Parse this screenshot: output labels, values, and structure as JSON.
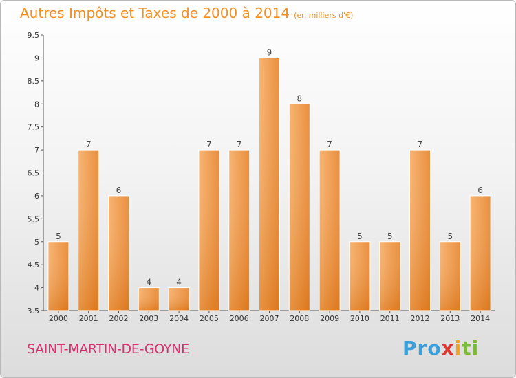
{
  "title": "Autres Impôts et Taxes de 2000 à 2014",
  "unit_label": "(en milliers d'€)",
  "commune": "SAINT-MARTIN-DE-GOYNE",
  "logo_text": "Proxiti",
  "colors": {
    "bar_light": "#f6a75a",
    "bar_dark": "#e67e22",
    "title": "#f29024",
    "commune": "#d8326e"
  },
  "chart_data": {
    "type": "bar",
    "categories": [
      "2000",
      "2001",
      "2002",
      "2003",
      "2004",
      "2005",
      "2006",
      "2007",
      "2008",
      "2009",
      "2010",
      "2011",
      "2012",
      "2013",
      "2014"
    ],
    "values": [
      5,
      7,
      6,
      4,
      4,
      7,
      7,
      9,
      8,
      7,
      5,
      5,
      7,
      5,
      6
    ],
    "ylim": [
      3.5,
      9.5
    ],
    "yticks": [
      "3.5",
      "4",
      "4.5",
      "5",
      "5.5",
      "6",
      "6.5",
      "7",
      "7.5",
      "8",
      "8.5",
      "9",
      "9.5"
    ],
    "grid": false
  }
}
